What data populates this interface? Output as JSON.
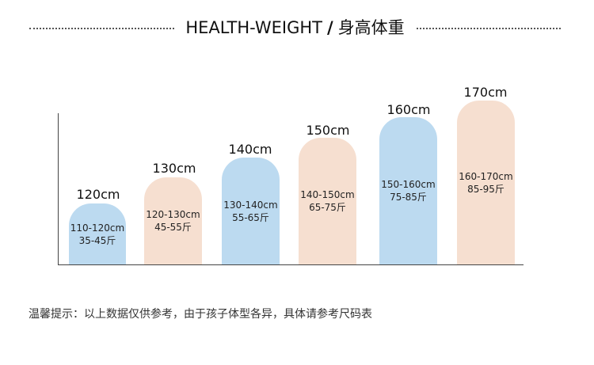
{
  "header": {
    "title_en": "HEALTH-WEIGHT",
    "separator": "/",
    "title_cn": "身高体重"
  },
  "bars": [
    {
      "height_label": "120cm",
      "size_range": "110-120cm",
      "weight_range": "35-45斤",
      "color": "#bcdaf0"
    },
    {
      "height_label": "130cm",
      "size_range": "120-130cm",
      "weight_range": "45-55斤",
      "color": "#f6dfd0"
    },
    {
      "height_label": "140cm",
      "size_range": "130-140cm",
      "weight_range": "55-65斤",
      "color": "#bcdaf0"
    },
    {
      "height_label": "150cm",
      "size_range": "140-150cm",
      "weight_range": "65-75斤",
      "color": "#f6dfd0"
    },
    {
      "height_label": "160cm",
      "size_range": "150-160cm",
      "weight_range": "75-85斤",
      "color": "#bcdaf0"
    },
    {
      "height_label": "170cm",
      "size_range": "160-170cm",
      "weight_range": "85-95斤",
      "color": "#f6dfd0"
    }
  ],
  "note": "温馨提示：以上数据仅供参考，由于孩子体型各异，具体请参考尺码表"
}
